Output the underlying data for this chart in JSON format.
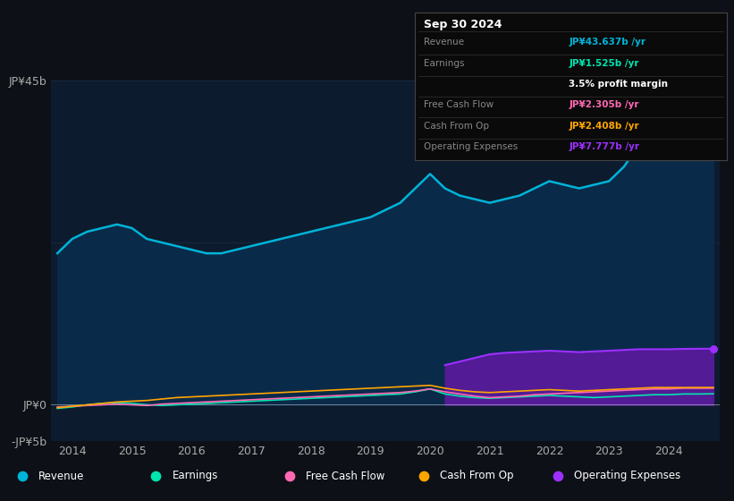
{
  "background_color": "#0d1117",
  "plot_bg_color": "#0d1b2e",
  "years": [
    2013.75,
    2014.0,
    2014.25,
    2014.5,
    2014.75,
    2015.0,
    2015.25,
    2015.5,
    2015.75,
    2016.0,
    2016.25,
    2016.5,
    2016.75,
    2017.0,
    2017.25,
    2017.5,
    2017.75,
    2018.0,
    2018.25,
    2018.5,
    2018.75,
    2019.0,
    2019.25,
    2019.5,
    2019.75,
    2020.0,
    2020.25,
    2020.5,
    2020.75,
    2021.0,
    2021.25,
    2021.5,
    2021.75,
    2022.0,
    2022.25,
    2022.5,
    2022.75,
    2023.0,
    2023.25,
    2023.5,
    2023.75,
    2024.0,
    2024.25,
    2024.5,
    2024.75
  ],
  "revenue": [
    21,
    23,
    24,
    24.5,
    25,
    24.5,
    23,
    22.5,
    22,
    21.5,
    21,
    21,
    21.5,
    22,
    22.5,
    23,
    23.5,
    24,
    24.5,
    25,
    25.5,
    26,
    27,
    28,
    30,
    32,
    30,
    29,
    28.5,
    28,
    28.5,
    29,
    30,
    31,
    30.5,
    30,
    30.5,
    31,
    33,
    36,
    39,
    41,
    42,
    43,
    43.6
  ],
  "earnings": [
    -0.5,
    -0.3,
    0.0,
    0.2,
    0.3,
    0.2,
    0.0,
    -0.1,
    0.0,
    0.1,
    0.2,
    0.3,
    0.4,
    0.5,
    0.6,
    0.7,
    0.8,
    0.9,
    1.0,
    1.1,
    1.2,
    1.3,
    1.4,
    1.5,
    1.8,
    2.2,
    1.5,
    1.2,
    1.0,
    0.9,
    1.0,
    1.1,
    1.2,
    1.3,
    1.2,
    1.1,
    1.0,
    1.1,
    1.2,
    1.3,
    1.4,
    1.4,
    1.5,
    1.5,
    1.525
  ],
  "free_cash_flow": [
    -0.3,
    -0.2,
    -0.1,
    0.0,
    0.1,
    0.0,
    -0.1,
    0.1,
    0.2,
    0.3,
    0.4,
    0.5,
    0.6,
    0.7,
    0.8,
    0.9,
    1.0,
    1.1,
    1.2,
    1.3,
    1.4,
    1.5,
    1.6,
    1.7,
    1.9,
    2.2,
    1.8,
    1.5,
    1.2,
    1.0,
    1.1,
    1.2,
    1.4,
    1.5,
    1.6,
    1.7,
    1.8,
    1.9,
    2.0,
    2.1,
    2.2,
    2.2,
    2.3,
    2.3,
    2.305
  ],
  "cash_from_op": [
    -0.4,
    -0.2,
    0.0,
    0.2,
    0.4,
    0.5,
    0.6,
    0.8,
    1.0,
    1.1,
    1.2,
    1.3,
    1.4,
    1.5,
    1.6,
    1.7,
    1.8,
    1.9,
    2.0,
    2.1,
    2.2,
    2.3,
    2.4,
    2.5,
    2.6,
    2.7,
    2.3,
    2.0,
    1.8,
    1.7,
    1.8,
    1.9,
    2.0,
    2.1,
    2.0,
    1.9,
    2.0,
    2.1,
    2.2,
    2.3,
    2.4,
    2.4,
    2.4,
    2.4,
    2.408
  ],
  "operating_expenses": [
    0,
    0,
    0,
    0,
    0,
    0,
    0,
    0,
    0,
    0,
    0,
    0,
    0,
    0,
    0,
    0,
    0,
    0,
    0,
    0,
    0,
    0,
    0,
    0,
    0,
    0,
    5.5,
    6.0,
    6.5,
    7.0,
    7.2,
    7.3,
    7.4,
    7.5,
    7.4,
    7.3,
    7.4,
    7.5,
    7.6,
    7.7,
    7.7,
    7.7,
    7.75,
    7.77,
    7.777
  ],
  "ylim": [
    -5,
    45
  ],
  "yticks": [
    -5,
    0,
    45
  ],
  "ytick_labels": [
    "-JP¥5b",
    "JP¥0",
    "JP¥45b"
  ],
  "xtick_years": [
    2014,
    2015,
    2016,
    2017,
    2018,
    2019,
    2020,
    2021,
    2022,
    2023,
    2024
  ],
  "revenue_color": "#00b4d8",
  "earnings_color": "#00e5b0",
  "free_cash_flow_color": "#ff69b4",
  "cash_from_op_color": "#ffa500",
  "operating_expenses_color": "#9b30ff",
  "operating_expenses_fill_color": "#5c1a9e",
  "revenue_fill_color": "#0a2a4a",
  "legend_items": [
    {
      "label": "Revenue",
      "color": "#00b4d8"
    },
    {
      "label": "Earnings",
      "color": "#00e5b0"
    },
    {
      "label": "Free Cash Flow",
      "color": "#ff69b4"
    },
    {
      "label": "Cash From Op",
      "color": "#ffa500"
    },
    {
      "label": "Operating Expenses",
      "color": "#9b30ff"
    }
  ],
  "box_title": "Sep 30 2024",
  "box_rows": [
    {
      "label": "Revenue",
      "value": "JP¥43.637b /yr",
      "value_color": "#00b4d8",
      "show_label": true
    },
    {
      "label": "Earnings",
      "value": "JP¥1.525b /yr",
      "value_color": "#00e5b0",
      "show_label": true
    },
    {
      "label": "",
      "value": "3.5% profit margin",
      "value_color": "#ffffff",
      "show_label": false
    },
    {
      "label": "Free Cash Flow",
      "value": "JP¥2.305b /yr",
      "value_color": "#ff69b4",
      "show_label": true
    },
    {
      "label": "Cash From Op",
      "value": "JP¥2.408b /yr",
      "value_color": "#ffa500",
      "show_label": true
    },
    {
      "label": "Operating Expenses",
      "value": "JP¥7.777b /yr",
      "value_color": "#9b30ff",
      "show_label": true
    }
  ]
}
